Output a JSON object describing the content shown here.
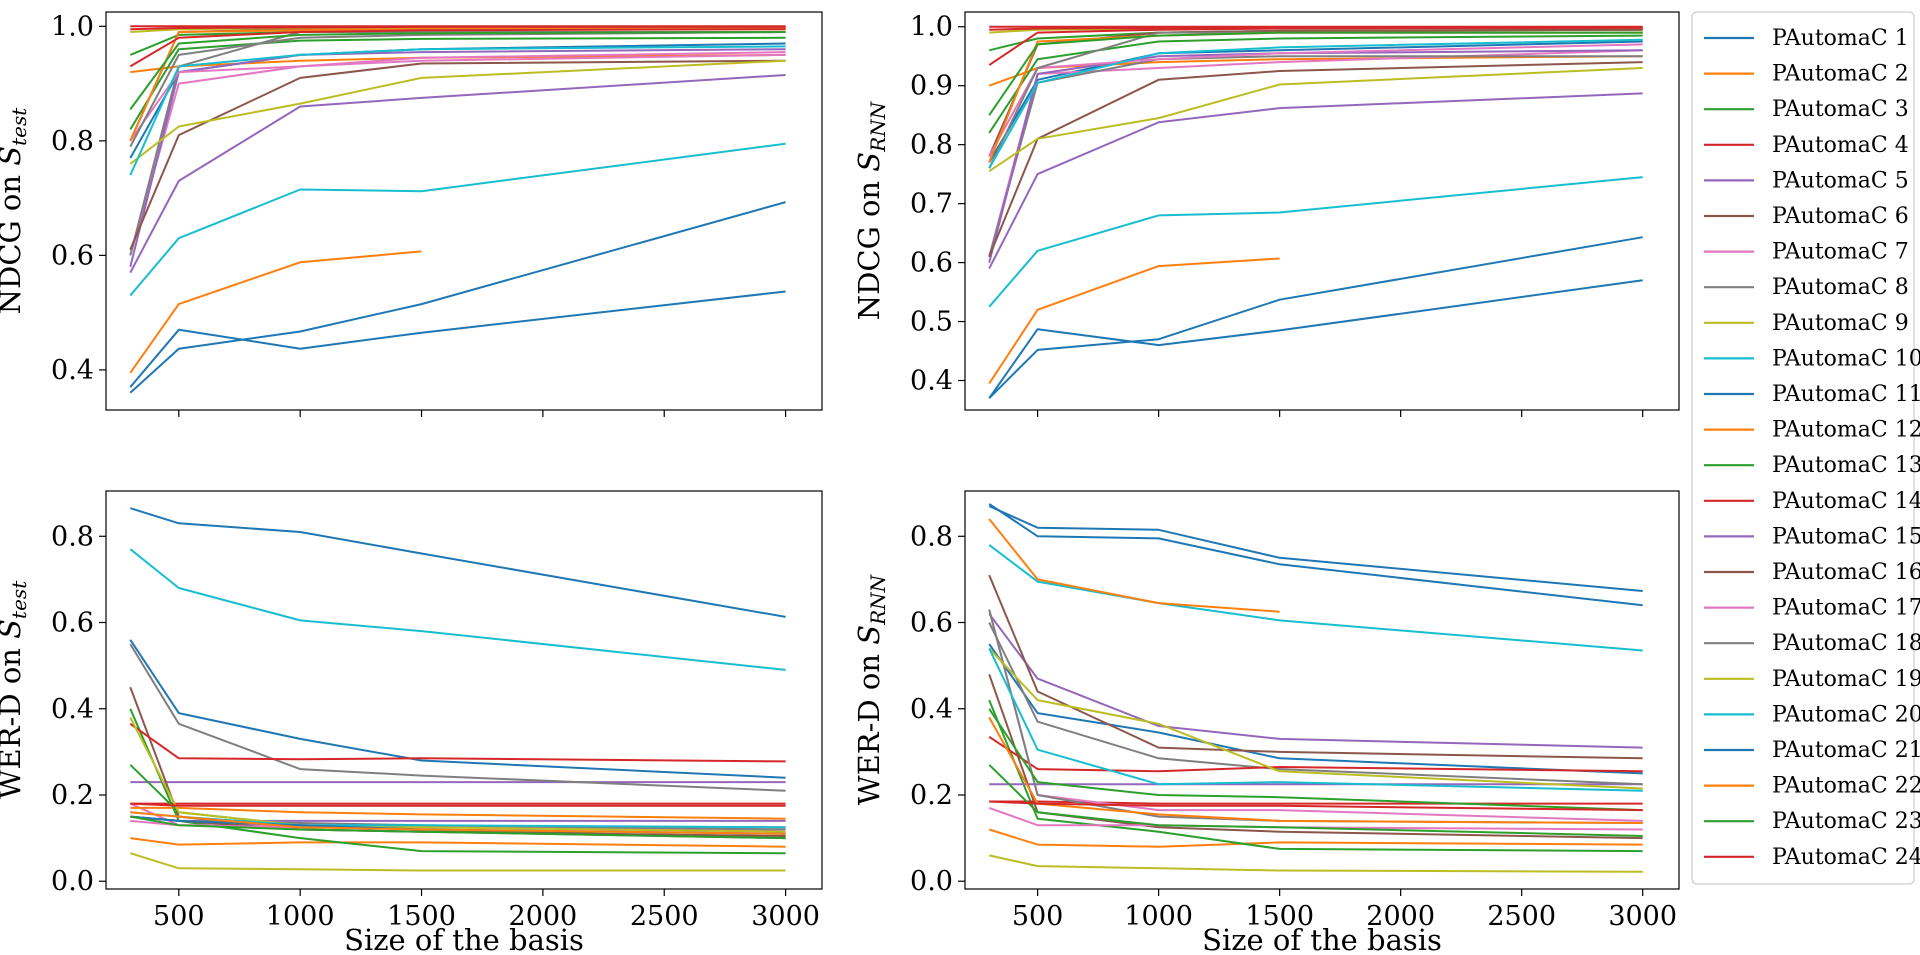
{
  "palette": [
    "#1f77b4",
    "#ff7f0e",
    "#2ca02c",
    "#d62728",
    "#9467bd",
    "#8c564b",
    "#e377c2",
    "#7f7f7f",
    "#bcbd22",
    "#17becf"
  ],
  "chart_data": {
    "type": "line",
    "x": [
      300,
      500,
      1000,
      1500,
      3000
    ],
    "shared_xlabel": "Size of the basis",
    "xticks": [
      500,
      1000,
      1500,
      2000,
      2500,
      3000
    ],
    "xlim": [
      200,
      3150
    ],
    "legend": {
      "position": "right",
      "entries": [
        "PAutomaC 1",
        "PAutomaC 2",
        "PAutomaC 3",
        "PAutomaC 4",
        "PAutomaC 5",
        "PAutomaC 6",
        "PAutomaC 7",
        "PAutomaC 8",
        "PAutomaC 9",
        "PAutomaC 10",
        "PAutomaC 11",
        "PAutomaC 12",
        "PAutomaC 13",
        "PAutomaC 14",
        "PAutomaC 15",
        "PAutomaC 16",
        "PAutomaC 17",
        "PAutomaC 18",
        "PAutomaC 19",
        "PAutomaC 20",
        "PAutomaC 21",
        "PAutomaC 22",
        "PAutomaC 23",
        "PAutomaC 24"
      ]
    },
    "panels": [
      {
        "name": "ndcg-test",
        "ylabel_main": "NDCG on ",
        "ylabel_sym": "S",
        "ylabel_sub": "test",
        "ylim": [
          0.33,
          1.025
        ],
        "yticks": [
          0.4,
          0.6,
          0.8,
          1.0
        ],
        "ytick_labels": [
          "0.4",
          "0.6",
          "0.8",
          "1.0"
        ],
        "series": [
          [
            0.77,
            0.92,
            0.95,
            0.96,
            0.97
          ],
          [
            0.92,
            0.93,
            0.94,
            0.945,
            0.95
          ],
          [
            0.95,
            0.985,
            0.99,
            0.995,
            0.998
          ],
          [
            1.0,
            1.0,
            1.0,
            1.0,
            1.0
          ],
          [
            0.57,
            0.73,
            0.86,
            0.875,
            0.915
          ],
          [
            0.8,
            0.99,
            0.995,
            0.997,
            0.998
          ],
          [
            0.6,
            0.9,
            0.93,
            0.94,
            0.95
          ],
          [
            0.6,
            0.93,
            0.99,
            0.99,
            0.99
          ],
          [
            0.99,
            0.995,
            0.997,
            0.998,
            0.998
          ],
          [
            0.53,
            0.63,
            0.715,
            0.712,
            0.795
          ],
          [
            0.37,
            0.47,
            0.437,
            0.465,
            0.537
          ],
          [
            0.395,
            0.515,
            0.588,
            0.607,
            null
          ],
          [
            0.82,
            0.96,
            0.975,
            0.978,
            0.98
          ],
          [
            0.995,
            0.997,
            0.998,
            0.999,
            0.999
          ],
          [
            0.58,
            0.92,
            0.95,
            0.955,
            0.96
          ],
          [
            0.61,
            0.81,
            0.91,
            0.935,
            0.94
          ],
          [
            0.8,
            0.92,
            0.93,
            0.945,
            0.955
          ],
          [
            0.79,
            0.95,
            0.98,
            0.985,
            0.99
          ],
          [
            0.76,
            0.825,
            0.865,
            0.91,
            0.94
          ],
          [
            0.74,
            0.93,
            0.95,
            0.96,
            0.965
          ],
          [
            0.36,
            0.437,
            0.467,
            0.515,
            0.693
          ],
          [
            0.8,
            0.99,
            0.993,
            0.995,
            0.995
          ],
          [
            0.855,
            0.97,
            0.985,
            0.988,
            0.99
          ],
          [
            0.93,
            0.98,
            0.99,
            0.993,
            0.995
          ]
        ]
      },
      {
        "name": "ndcg-rnn",
        "ylabel_main": "NDCG on ",
        "ylabel_sym": "S",
        "ylabel_sub": "RNN",
        "ylim": [
          0.35,
          1.025
        ],
        "yticks": [
          0.4,
          0.5,
          0.6,
          0.7,
          0.8,
          0.9,
          1.0
        ],
        "ytick_labels": [
          "0.4",
          "0.5",
          "0.6",
          "0.7",
          "0.8",
          "0.9",
          "1.0"
        ],
        "series": [
          [
            0.77,
            0.91,
            0.955,
            0.96,
            0.975
          ],
          [
            0.9,
            0.93,
            0.94,
            0.945,
            0.95
          ],
          [
            0.96,
            0.98,
            0.99,
            0.993,
            0.995
          ],
          [
            1.0,
            1.0,
            1.0,
            1.0,
            1.0
          ],
          [
            0.59,
            0.75,
            0.838,
            0.862,
            0.887
          ],
          [
            0.78,
            0.97,
            0.99,
            0.993,
            0.995
          ],
          [
            0.61,
            0.92,
            0.93,
            0.94,
            0.96
          ],
          [
            0.61,
            0.905,
            0.945,
            0.95,
            0.95
          ],
          [
            0.99,
            0.995,
            0.997,
            0.998,
            0.998
          ],
          [
            0.525,
            0.62,
            0.68,
            0.685,
            0.745
          ],
          [
            0.37,
            0.452,
            0.47,
            0.537,
            0.643
          ],
          [
            0.395,
            0.52,
            0.594,
            0.607,
            null
          ],
          [
            0.82,
            0.945,
            0.975,
            0.98,
            0.985
          ],
          [
            0.995,
            0.997,
            0.998,
            0.999,
            0.999
          ],
          [
            0.6,
            0.92,
            0.95,
            0.955,
            0.96
          ],
          [
            0.61,
            0.81,
            0.91,
            0.925,
            0.94
          ],
          [
            0.78,
            0.93,
            0.945,
            0.955,
            0.97
          ],
          [
            0.76,
            0.93,
            0.99,
            0.99,
            0.99
          ],
          [
            0.755,
            0.81,
            0.845,
            0.902,
            0.93
          ],
          [
            0.76,
            0.905,
            0.955,
            0.965,
            0.978
          ],
          [
            0.37,
            0.487,
            0.46,
            0.485,
            0.57
          ],
          [
            0.77,
            0.975,
            0.985,
            0.99,
            0.99
          ],
          [
            0.85,
            0.97,
            0.985,
            0.99,
            0.99
          ],
          [
            0.935,
            0.99,
            0.995,
            0.997,
            0.998
          ]
        ]
      },
      {
        "name": "werd-test",
        "ylabel_main": "WER-D on ",
        "ylabel_sym": "S",
        "ylabel_sub": "test",
        "ylim": [
          -0.018,
          0.905
        ],
        "yticks": [
          0.0,
          0.2,
          0.4,
          0.6,
          0.8
        ],
        "ytick_labels": [
          "0.0",
          "0.2",
          "0.4",
          "0.6",
          "0.8"
        ],
        "series": [
          [
            0.56,
            0.39,
            0.33,
            0.28,
            0.24
          ],
          [
            0.1,
            0.085,
            0.09,
            0.09,
            0.08
          ],
          [
            0.4,
            0.14,
            0.1,
            0.07,
            0.065
          ],
          [
            0.18,
            0.18,
            0.18,
            0.18,
            0.18
          ],
          [
            0.23,
            0.23,
            0.23,
            0.23,
            0.23
          ],
          [
            0.45,
            0.15,
            0.12,
            0.115,
            0.1
          ],
          [
            0.18,
            0.13,
            0.13,
            0.125,
            0.12
          ],
          [
            0.55,
            0.365,
            0.26,
            0.245,
            0.21
          ],
          [
            0.065,
            0.03,
            0.028,
            0.025,
            0.025
          ],
          [
            0.77,
            0.68,
            0.605,
            0.58,
            0.49
          ],
          [
            0.865,
            0.83,
            0.81,
            0.76,
            0.613
          ],
          [
            0.17,
            0.17,
            0.16,
            0.155,
            0.145
          ],
          [
            0.27,
            0.16,
            0.13,
            0.12,
            0.1
          ],
          [
            0.365,
            0.285,
            0.283,
            0.285,
            0.278
          ],
          [
            0.15,
            0.14,
            0.14,
            0.14,
            0.14
          ],
          [
            0.15,
            0.14,
            0.12,
            0.115,
            0.105
          ],
          [
            0.14,
            0.13,
            0.125,
            0.125,
            0.125
          ],
          [
            0.15,
            0.14,
            0.135,
            0.13,
            0.12
          ],
          [
            0.38,
            0.16,
            0.13,
            0.125,
            0.115
          ],
          [
            0.16,
            0.15,
            0.13,
            0.13,
            0.125
          ],
          [
            0.15,
            0.14,
            0.13,
            0.12,
            0.11
          ],
          [
            0.16,
            0.15,
            0.125,
            0.12,
            0.11
          ],
          [
            0.15,
            0.13,
            0.12,
            0.115,
            0.1
          ],
          [
            0.18,
            0.175,
            0.175,
            0.175,
            0.175
          ]
        ]
      },
      {
        "name": "werd-rnn",
        "ylabel_main": "WER-D on ",
        "ylabel_sym": "S",
        "ylabel_sub": "RNN",
        "ylim": [
          -0.018,
          0.905
        ],
        "yticks": [
          0.0,
          0.2,
          0.4,
          0.6,
          0.8
        ],
        "ytick_labels": [
          "0.0",
          "0.2",
          "0.4",
          "0.6",
          "0.8"
        ],
        "series": [
          [
            0.55,
            0.39,
            0.345,
            0.285,
            0.25
          ],
          [
            0.12,
            0.085,
            0.08,
            0.09,
            0.085
          ],
          [
            0.42,
            0.145,
            0.115,
            0.075,
            0.07
          ],
          [
            0.185,
            0.185,
            0.18,
            0.18,
            0.18
          ],
          [
            0.225,
            0.225,
            0.225,
            0.225,
            0.225
          ],
          [
            0.48,
            0.16,
            0.125,
            0.115,
            0.1
          ],
          [
            0.17,
            0.13,
            0.13,
            0.125,
            0.12
          ],
          [
            0.6,
            0.37,
            0.285,
            0.26,
            0.225
          ],
          [
            0.06,
            0.035,
            0.03,
            0.025,
            0.022
          ],
          [
            0.78,
            0.695,
            0.645,
            0.605,
            0.535
          ],
          [
            0.87,
            0.82,
            0.815,
            0.75,
            0.673
          ],
          [
            0.84,
            0.7,
            0.645,
            0.625,
            null
          ],
          [
            0.27,
            0.16,
            0.13,
            0.125,
            0.105
          ],
          [
            0.335,
            0.26,
            0.255,
            0.265,
            0.255
          ],
          [
            0.62,
            0.47,
            0.36,
            0.33,
            0.31
          ],
          [
            0.71,
            0.44,
            0.31,
            0.3,
            0.285
          ],
          [
            0.63,
            0.2,
            0.165,
            0.165,
            0.14
          ],
          [
            0.63,
            0.2,
            0.15,
            0.14,
            0.135
          ],
          [
            0.54,
            0.42,
            0.365,
            0.255,
            0.215
          ],
          [
            0.54,
            0.305,
            0.225,
            0.23,
            0.21
          ],
          [
            0.875,
            0.8,
            0.795,
            0.735,
            0.64
          ],
          [
            0.38,
            0.18,
            0.155,
            0.14,
            0.135
          ],
          [
            0.4,
            0.23,
            0.2,
            0.195,
            0.165
          ],
          [
            0.185,
            0.18,
            0.175,
            0.175,
            0.165
          ]
        ]
      }
    ]
  }
}
